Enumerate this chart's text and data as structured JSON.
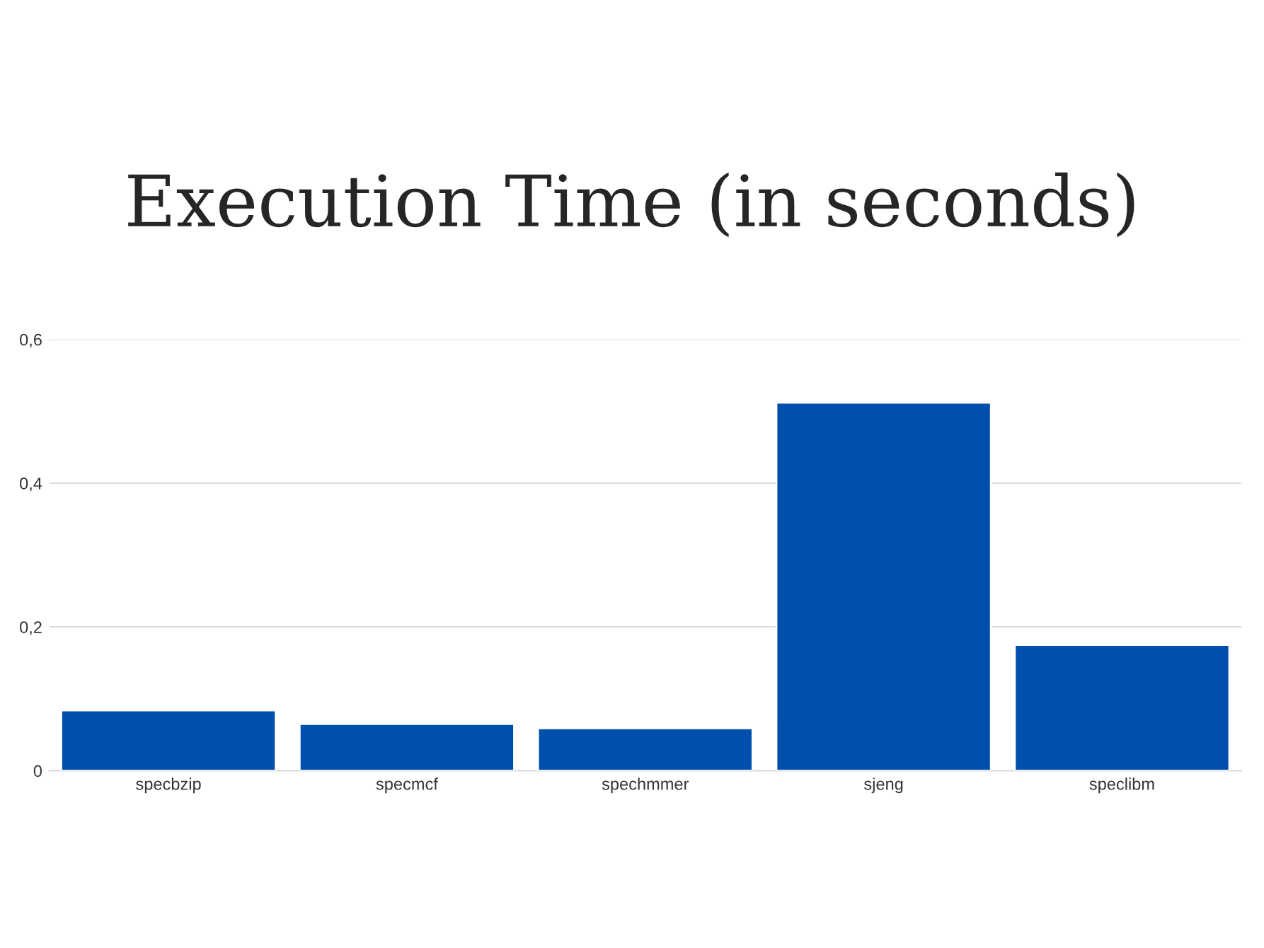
{
  "chart_data": {
    "type": "bar",
    "title": "Execution Time (in seconds)",
    "categories": [
      "specbzip",
      "specmcf",
      "spechmmer",
      "sjeng",
      "speclibm"
    ],
    "values": [
      0.084,
      0.065,
      0.059,
      0.512,
      0.175
    ],
    "color": "#004fad",
    "ylim": [
      0,
      0.6
    ],
    "yticks": [
      0,
      {
        "value": 0.2,
        "label": "0,2"
      },
      {
        "value": 0.4,
        "label": "0,4"
      },
      {
        "value": 0.6,
        "label": "0,6"
      }
    ],
    "grid": "y"
  }
}
